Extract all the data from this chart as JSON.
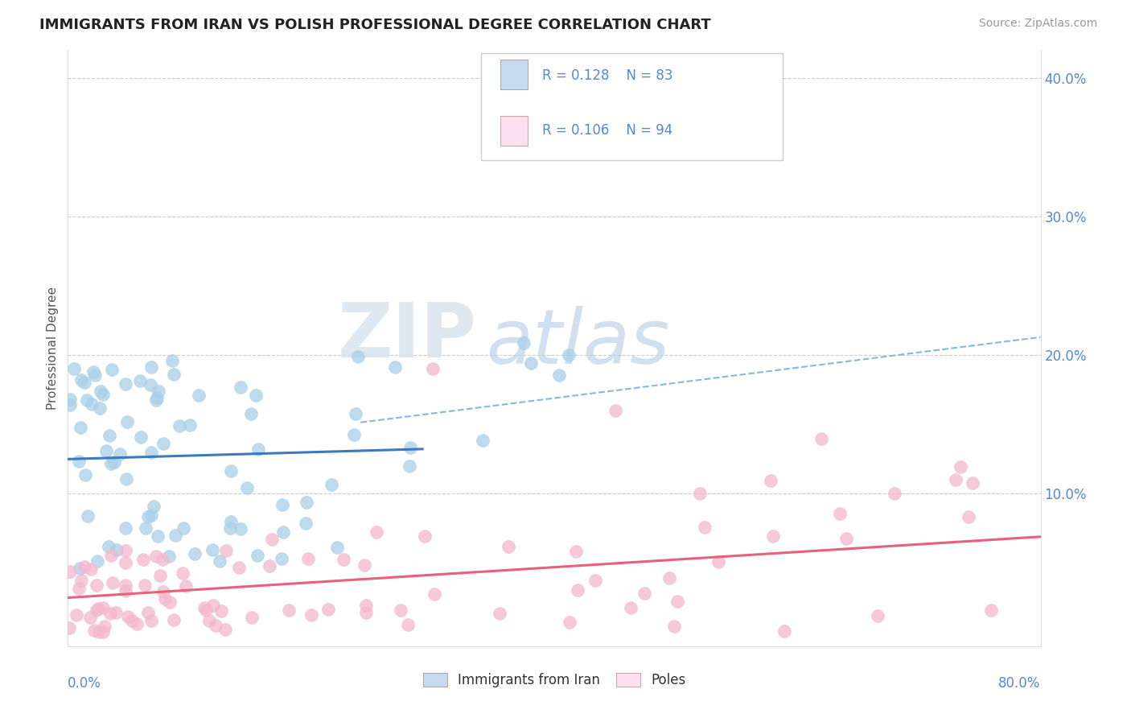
{
  "title": "IMMIGRANTS FROM IRAN VS POLISH PROFESSIONAL DEGREE CORRELATION CHART",
  "source": "Source: ZipAtlas.com",
  "ylabel": "Professional Degree",
  "watermark_zip": "ZIP",
  "watermark_atlas": "atlas",
  "xlim": [
    0.0,
    0.8
  ],
  "ylim": [
    -0.01,
    0.42
  ],
  "yticks": [
    0.1,
    0.2,
    0.3,
    0.4
  ],
  "ytick_labels": [
    "10.0%",
    "20.0%",
    "30.0%",
    "40.0%"
  ],
  "blue_scatter": "#a8cfe8",
  "pink_scatter": "#f4b8cc",
  "blue_line": "#3a7abf",
  "pink_line": "#e8607a",
  "blue_dashed": "#7ab0d8",
  "tick_color": "#5588cc",
  "grid_color": "#cccccc",
  "title_fontsize": 13,
  "legend_r1": "R = 0.128",
  "legend_n1": "N = 83",
  "legend_r2": "R = 0.106",
  "legend_n2": "N = 94",
  "blue_legend": "#c6dbef",
  "pink_legend": "#fce0ef"
}
